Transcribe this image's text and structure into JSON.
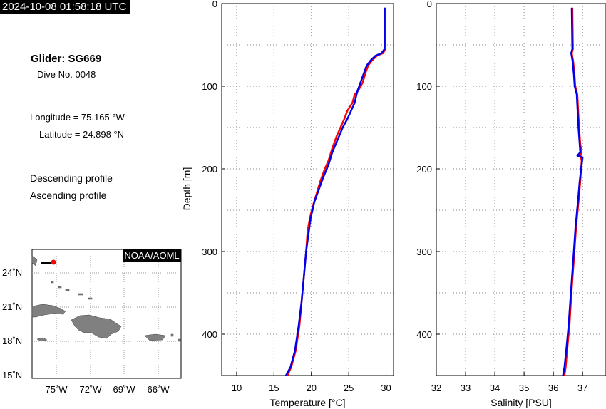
{
  "header": {
    "timestamp": "2024-10-08 01:58:18 UTC"
  },
  "info": {
    "glider": "Glider: SG669",
    "dive": "Dive No. 0048",
    "longitude": "Longitude = 75.165 °W",
    "latitude": "Latitude = 24.898 °N",
    "descending_label": "Descending profile",
    "ascending_label": "Ascending profile"
  },
  "colors": {
    "descending": "#ff0000",
    "ascending": "#0000ee",
    "land": "#808080",
    "track": "#000000",
    "current_position": "#ff0000"
  },
  "map": {
    "credit": "NOAA/AOML",
    "lat_ticks": [
      "24˚N",
      "21˚N",
      "18˚N",
      "15˚N"
    ],
    "lon_ticks": [
      "75˚W",
      "72˚W",
      "69˚W",
      "66˚W"
    ],
    "glider_position": {
      "lon": -75.165,
      "lat": 24.898
    }
  },
  "chart_data": [
    {
      "type": "line",
      "xlabel": "Temperature [°C]",
      "ylabel": "Depth [m]",
      "xlim": [
        8,
        31
      ],
      "ylim": [
        0,
        450
      ],
      "y_inverted": true,
      "grid": true,
      "x_ticks": [
        10,
        15,
        20,
        25,
        30
      ],
      "y_ticks": [
        0,
        100,
        200,
        300,
        400
      ],
      "series": [
        {
          "name": "Descending profile",
          "color": "#ff0000",
          "points": [
            [
              29.9,
              5
            ],
            [
              29.9,
              20
            ],
            [
              29.9,
              40
            ],
            [
              29.9,
              55
            ],
            [
              29.6,
              60
            ],
            [
              28.8,
              63
            ],
            [
              28.2,
              68
            ],
            [
              27.6,
              75
            ],
            [
              27.2,
              85
            ],
            [
              26.9,
              95
            ],
            [
              26.3,
              105
            ],
            [
              25.8,
              110
            ],
            [
              25.5,
              120
            ],
            [
              24.8,
              130
            ],
            [
              24.4,
              140
            ],
            [
              23.9,
              150
            ],
            [
              23.4,
              160
            ],
            [
              22.8,
              175
            ],
            [
              22.3,
              190
            ],
            [
              21.8,
              200
            ],
            [
              21.2,
              215
            ],
            [
              20.7,
              230
            ],
            [
              20.2,
              245
            ],
            [
              19.8,
              260
            ],
            [
              19.5,
              275
            ],
            [
              19.3,
              300
            ],
            [
              19.0,
              330
            ],
            [
              18.7,
              360
            ],
            [
              18.4,
              390
            ],
            [
              17.9,
              420
            ],
            [
              17.3,
              440
            ],
            [
              16.8,
              450
            ]
          ]
        },
        {
          "name": "Ascending profile",
          "color": "#0000ee",
          "points": [
            [
              29.8,
              5
            ],
            [
              29.8,
              20
            ],
            [
              29.8,
              40
            ],
            [
              29.8,
              55
            ],
            [
              29.4,
              60
            ],
            [
              28.6,
              63
            ],
            [
              28.0,
              68
            ],
            [
              27.4,
              75
            ],
            [
              27.0,
              85
            ],
            [
              26.6,
              95
            ],
            [
              26.2,
              105
            ],
            [
              26.0,
              112
            ],
            [
              25.8,
              120
            ],
            [
              25.3,
              130
            ],
            [
              24.8,
              140
            ],
            [
              24.2,
              150
            ],
            [
              23.5,
              165
            ],
            [
              22.8,
              180
            ],
            [
              22.3,
              195
            ],
            [
              21.6,
              210
            ],
            [
              21.0,
              225
            ],
            [
              20.4,
              240
            ],
            [
              19.9,
              260
            ],
            [
              19.6,
              280
            ],
            [
              19.3,
              300
            ],
            [
              19.0,
              330
            ],
            [
              18.7,
              360
            ],
            [
              18.3,
              390
            ],
            [
              17.8,
              420
            ],
            [
              17.2,
              440
            ],
            [
              16.6,
              450
            ]
          ]
        }
      ]
    },
    {
      "type": "line",
      "xlabel": "Salinity [PSU]",
      "ylabel": "",
      "xlim": [
        32,
        37.8
      ],
      "ylim": [
        0,
        450
      ],
      "y_inverted": true,
      "grid": true,
      "x_ticks": [
        32,
        33,
        34,
        35,
        36,
        37
      ],
      "y_ticks": [
        0,
        100,
        200,
        300,
        400
      ],
      "series": [
        {
          "name": "Descending profile",
          "color": "#ff0000",
          "points": [
            [
              36.65,
              5
            ],
            [
              36.66,
              30
            ],
            [
              36.67,
              55
            ],
            [
              36.63,
              60
            ],
            [
              36.68,
              70
            ],
            [
              36.72,
              85
            ],
            [
              36.75,
              100
            ],
            [
              36.82,
              110
            ],
            [
              36.85,
              130
            ],
            [
              36.88,
              150
            ],
            [
              36.92,
              170
            ],
            [
              36.97,
              180
            ],
            [
              36.93,
              184
            ],
            [
              36.97,
              190
            ],
            [
              36.92,
              215
            ],
            [
              36.86,
              240
            ],
            [
              36.78,
              270
            ],
            [
              36.72,
              300
            ],
            [
              36.66,
              330
            ],
            [
              36.6,
              360
            ],
            [
              36.55,
              390
            ],
            [
              36.47,
              420
            ],
            [
              36.42,
              440
            ],
            [
              36.38,
              450
            ]
          ]
        },
        {
          "name": "Ascending profile",
          "color": "#0000ee",
          "points": [
            [
              36.63,
              5
            ],
            [
              36.64,
              30
            ],
            [
              36.65,
              55
            ],
            [
              36.61,
              60
            ],
            [
              36.66,
              70
            ],
            [
              36.7,
              85
            ],
            [
              36.73,
              100
            ],
            [
              36.8,
              110
            ],
            [
              36.83,
              130
            ],
            [
              36.86,
              150
            ],
            [
              36.9,
              170
            ],
            [
              36.92,
              180
            ],
            [
              36.82,
              184
            ],
            [
              37.0,
              186
            ],
            [
              36.95,
              200
            ],
            [
              36.9,
              215
            ],
            [
              36.84,
              240
            ],
            [
              36.76,
              270
            ],
            [
              36.7,
              300
            ],
            [
              36.64,
              330
            ],
            [
              36.58,
              360
            ],
            [
              36.52,
              390
            ],
            [
              36.44,
              420
            ],
            [
              36.38,
              440
            ],
            [
              36.33,
              450
            ]
          ]
        }
      ]
    }
  ]
}
